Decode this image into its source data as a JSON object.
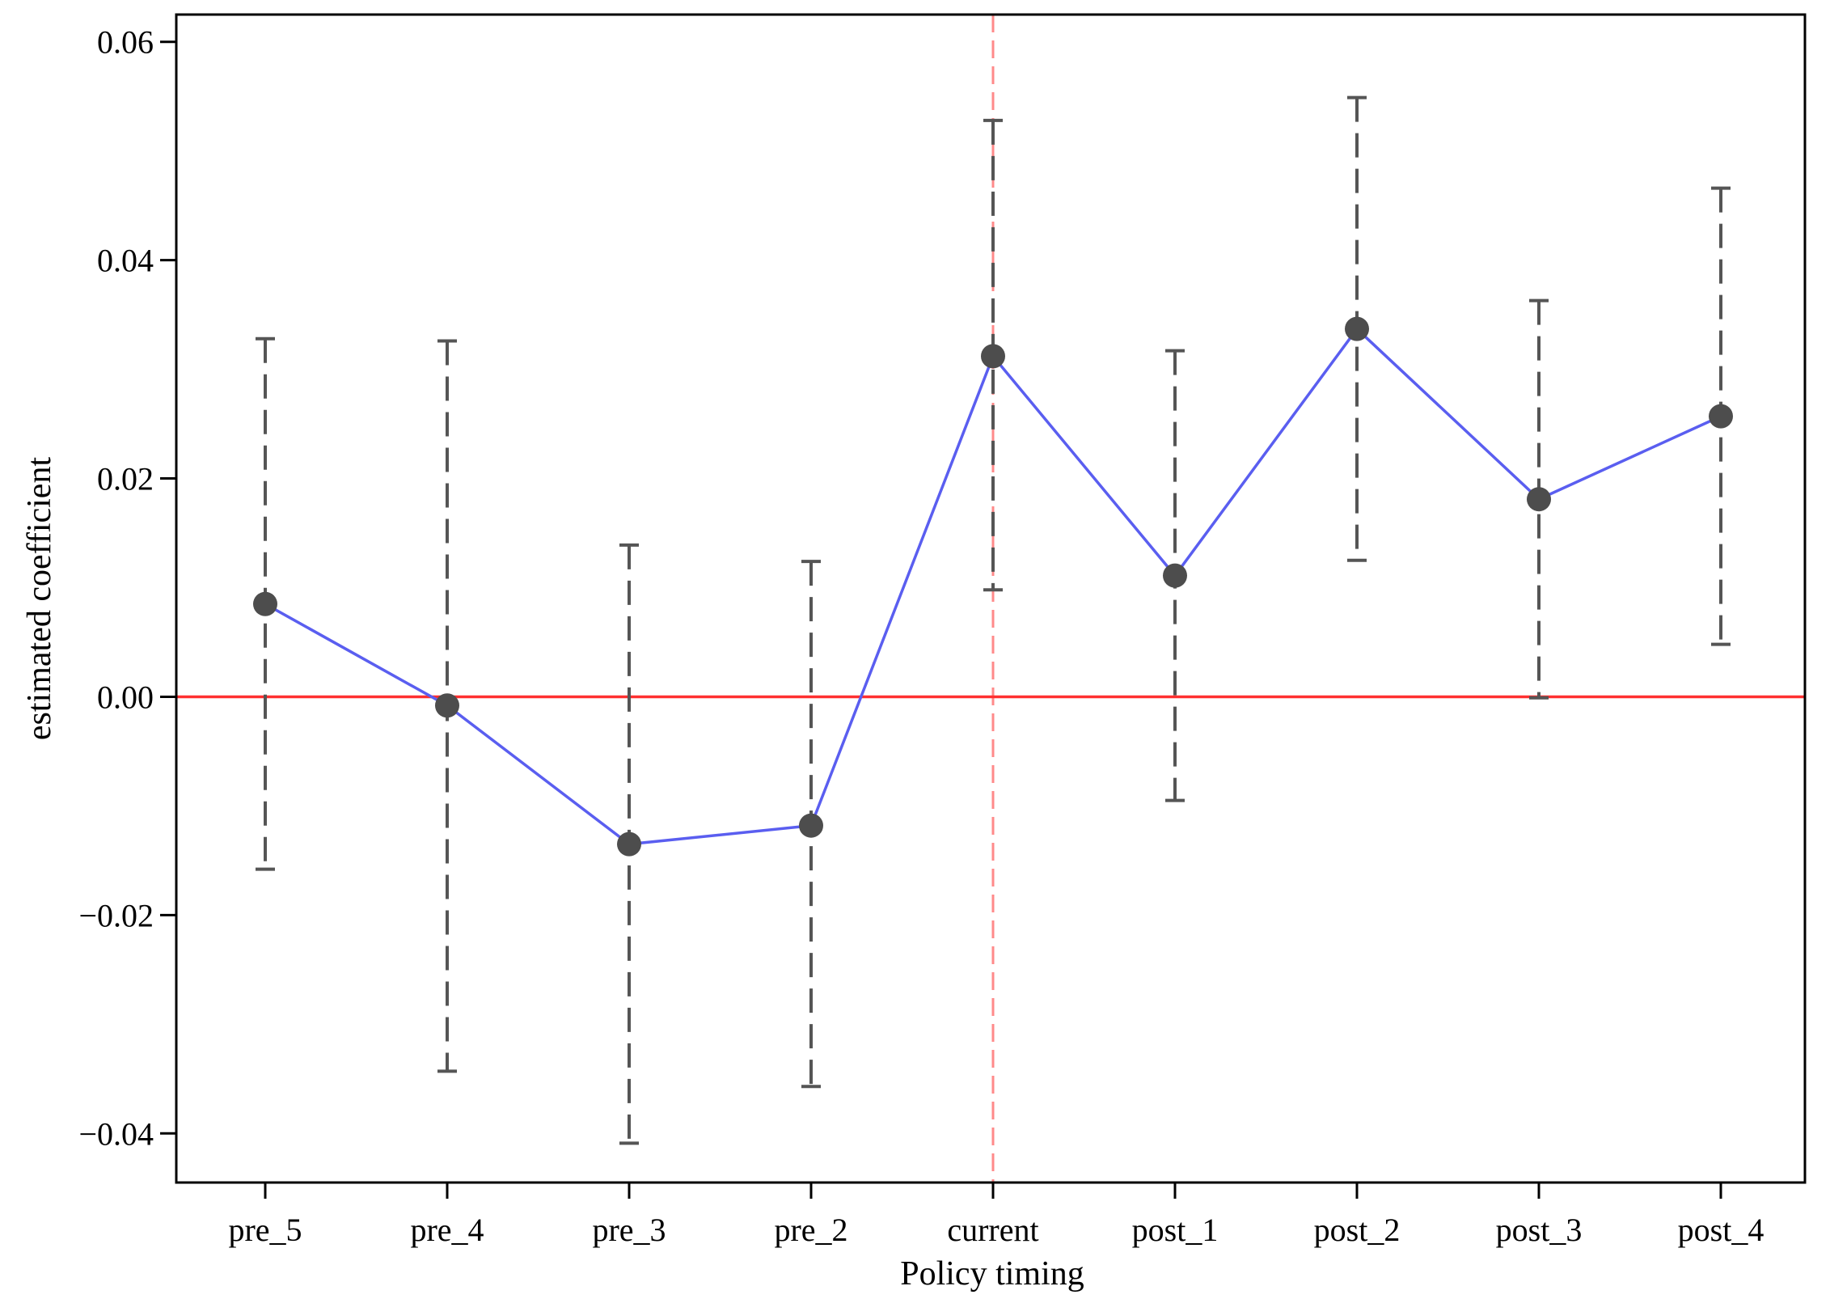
{
  "chart_data": {
    "type": "scatter",
    "title": "",
    "xlabel": "Policy timing",
    "ylabel": "estimated coefficient",
    "categories": [
      "pre_5",
      "pre_4",
      "pre_3",
      "pre_2",
      "current",
      "post_1",
      "post_2",
      "post_3",
      "post_4"
    ],
    "ylim": [
      -0.0445,
      0.0625
    ],
    "yticks": [
      -0.04,
      -0.02,
      0.0,
      0.02,
      0.04,
      0.06
    ],
    "ytick_labels": [
      "−0.04",
      "−0.02",
      "0.00",
      "0.02",
      "0.04",
      "0.06"
    ],
    "grid": false,
    "legend": "none",
    "series": [
      {
        "type": "line-with-markers",
        "values": [
          0.0085,
          -0.0008,
          -0.0135,
          -0.0118,
          0.0312,
          0.0111,
          0.0337,
          0.0181,
          0.0257
        ],
        "line_color": "#5a5ef0",
        "marker_color": "#4d4d4d"
      }
    ],
    "confidence_intervals": {
      "style": "dashed",
      "color": "#555555",
      "lower": [
        -0.0158,
        -0.0343,
        -0.0409,
        -0.0357,
        0.0098,
        -0.0095,
        0.0125,
        -0.0001,
        0.0048
      ],
      "upper": [
        0.0328,
        0.0326,
        0.0139,
        0.0124,
        0.0528,
        0.0317,
        0.0549,
        0.0363,
        0.0466
      ]
    },
    "reference_lines": {
      "horizontal": {
        "y": 0.0,
        "color": "#ff3030",
        "style": "solid"
      },
      "vertical": {
        "category": "current",
        "color": "#ff8a8a",
        "style": "dashed"
      }
    }
  }
}
